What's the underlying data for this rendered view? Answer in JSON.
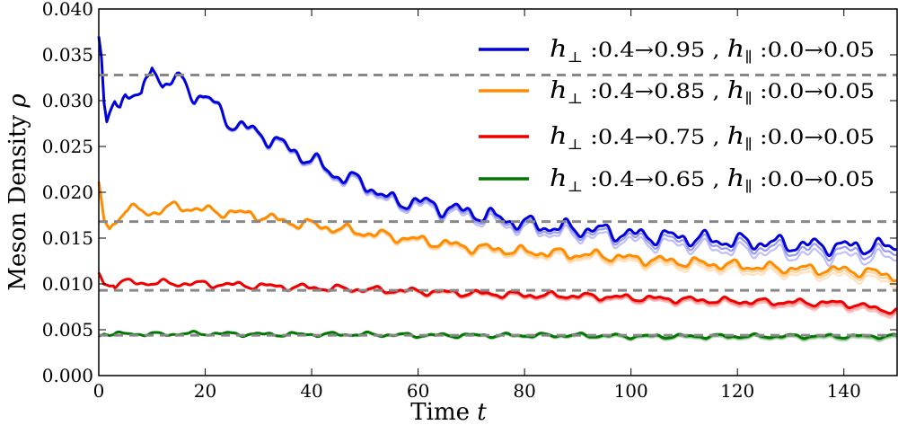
{
  "chart_data": {
    "type": "line",
    "title": "",
    "xlabel": "Time",
    "xlabel_var": "t",
    "ylabel": "Meson Density",
    "ylabel_var": "ρ",
    "xlim": [
      0,
      150
    ],
    "ylim": [
      0.0,
      0.04
    ],
    "x_ticks": [
      0,
      20,
      40,
      60,
      80,
      100,
      120,
      140
    ],
    "y_ticks": [
      0.0,
      0.005,
      0.01,
      0.015,
      0.02,
      0.025,
      0.03,
      0.035,
      0.04
    ],
    "x_tick_labels": [
      "0",
      "20",
      "40",
      "60",
      "80",
      "100",
      "120",
      "140"
    ],
    "y_tick_labels": [
      "0.000",
      "0.005",
      "0.010",
      "0.015",
      "0.020",
      "0.025",
      "0.030",
      "0.035",
      "0.040"
    ],
    "grid": false,
    "legend_position": "top-right",
    "series": [
      {
        "name": "h⊥ :0.4→0.95 , h∥ :0.0→0.05",
        "legend_parts": [
          "h",
          "⊥",
          " :0.4→0.95 , ",
          "h",
          "∥",
          " :0.0→0.05"
        ],
        "color": "#0000dd",
        "equilibrium": 0.0328,
        "x": [
          0,
          0.5,
          1,
          1.5,
          2,
          3,
          4,
          5,
          6,
          8,
          10,
          12,
          14,
          16,
          18,
          20,
          25,
          30,
          35,
          40,
          45,
          50,
          55,
          60,
          65,
          70,
          75,
          80,
          85,
          90,
          95,
          100,
          105,
          110,
          115,
          120,
          125,
          130,
          135,
          140,
          145,
          150
        ],
        "y": [
          0.037,
          0.0345,
          0.0295,
          0.0275,
          0.0285,
          0.03,
          0.0295,
          0.031,
          0.031,
          0.03,
          0.034,
          0.0318,
          0.0322,
          0.032,
          0.0305,
          0.0305,
          0.0275,
          0.0265,
          0.025,
          0.0235,
          0.0218,
          0.021,
          0.019,
          0.019,
          0.0183,
          0.0178,
          0.0172,
          0.0166,
          0.0162,
          0.016,
          0.0158,
          0.0154,
          0.0152,
          0.0151,
          0.0148,
          0.0146,
          0.0145,
          0.0143,
          0.0142,
          0.0141,
          0.0141,
          0.014
        ]
      },
      {
        "name": "h⊥ :0.4→0.85 , h∥ :0.0→0.05",
        "legend_parts": [
          "h",
          "⊥",
          " :0.4→0.85 , ",
          "h",
          "∥",
          " :0.0→0.05"
        ],
        "color": "#ff8c00",
        "equilibrium": 0.0168,
        "x": [
          0,
          1,
          2,
          5,
          10,
          15,
          20,
          25,
          30,
          35,
          40,
          45,
          50,
          55,
          60,
          65,
          70,
          75,
          80,
          85,
          90,
          95,
          100,
          105,
          110,
          115,
          120,
          125,
          130,
          135,
          140,
          145,
          150
        ],
        "y": [
          0.021,
          0.017,
          0.016,
          0.0182,
          0.0178,
          0.0185,
          0.018,
          0.0178,
          0.0175,
          0.0168,
          0.0165,
          0.016,
          0.0156,
          0.0152,
          0.0148,
          0.0144,
          0.014,
          0.0138,
          0.0135,
          0.0134,
          0.0132,
          0.0131,
          0.0128,
          0.0126,
          0.0124,
          0.0122,
          0.012,
          0.0118,
          0.0117,
          0.0116,
          0.0115,
          0.0113,
          0.0108
        ]
      },
      {
        "name": "h⊥ :0.4→0.75 , h∥ :0.0→0.05",
        "legend_parts": [
          "h",
          "⊥",
          " :0.4→0.75 , ",
          "h",
          "∥",
          " :0.0→0.05"
        ],
        "color": "#ee0000",
        "equilibrium": 0.0093,
        "x": [
          0,
          1,
          2,
          5,
          10,
          20,
          30,
          40,
          50,
          60,
          70,
          80,
          90,
          100,
          110,
          120,
          130,
          140,
          150
        ],
        "y": [
          0.0112,
          0.01,
          0.0098,
          0.0102,
          0.0101,
          0.01,
          0.0098,
          0.0096,
          0.0094,
          0.0092,
          0.009,
          0.0088,
          0.0087,
          0.0085,
          0.0083,
          0.0081,
          0.008,
          0.0079,
          0.007
        ]
      },
      {
        "name": "h⊥ :0.4→0.65 , h∥ :0.0→0.05",
        "legend_parts": [
          "h",
          "⊥",
          " :0.4→0.65 , ",
          "h",
          "∥",
          " :0.0→0.05"
        ],
        "color": "#007700",
        "equilibrium": 0.0044,
        "x": [
          0,
          1,
          2,
          5,
          10,
          20,
          30,
          40,
          50,
          60,
          70,
          80,
          90,
          100,
          110,
          120,
          130,
          140,
          150
        ],
        "y": [
          0.0043,
          0.0046,
          0.0044,
          0.0046,
          0.0045,
          0.0046,
          0.0045,
          0.0045,
          0.0045,
          0.0044,
          0.0044,
          0.0044,
          0.0044,
          0.0043,
          0.0043,
          0.0043,
          0.0043,
          0.0043,
          0.0043
        ]
      }
    ]
  }
}
